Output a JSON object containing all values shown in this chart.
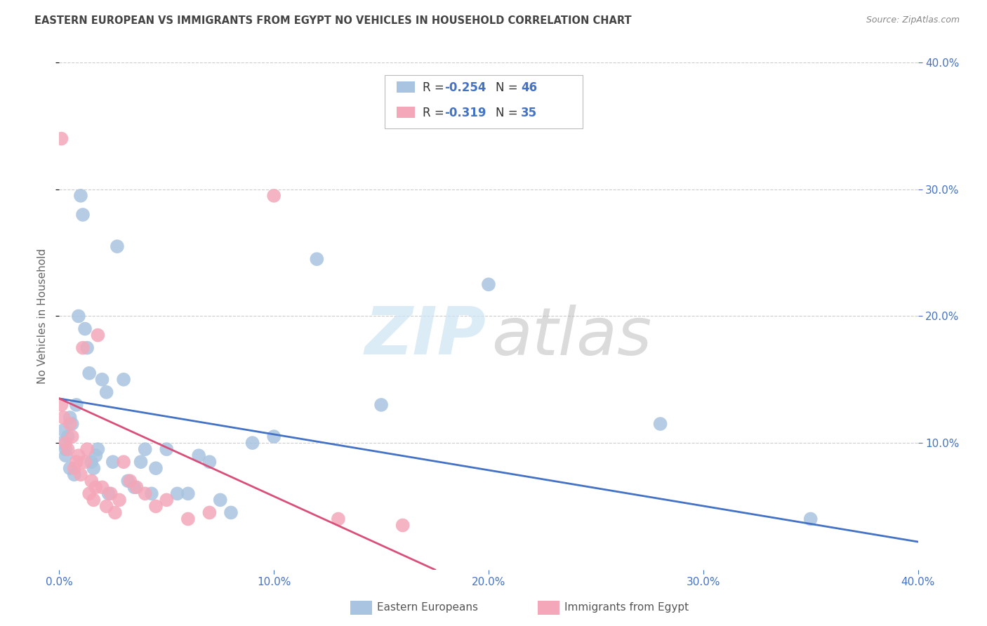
{
  "title": "EASTERN EUROPEAN VS IMMIGRANTS FROM EGYPT NO VEHICLES IN HOUSEHOLD CORRELATION CHART",
  "source": "Source: ZipAtlas.com",
  "ylabel": "No Vehicles in Household",
  "xlim": [
    0,
    0.4
  ],
  "ylim": [
    0,
    0.4
  ],
  "xtick_vals": [
    0.0,
    0.1,
    0.2,
    0.3,
    0.4
  ],
  "xtick_labels": [
    "0.0%",
    "10.0%",
    "20.0%",
    "30.0%",
    "40.0%"
  ],
  "ytick_vals": [
    0.1,
    0.2,
    0.3,
    0.4
  ],
  "ytick_labels": [
    "10.0%",
    "20.0%",
    "30.0%",
    "40.0%"
  ],
  "legend_R1": "-0.254",
  "legend_N1": "46",
  "legend_R2": "-0.319",
  "legend_N2": "35",
  "color_blue": "#a8c4e0",
  "color_pink": "#f4a7b9",
  "line_color_blue": "#4472c4",
  "line_color_pink": "#d94f7a",
  "tick_color": "#4472c4",
  "title_color": "#444444",
  "source_color": "#888888",
  "grid_color": "#cccccc",
  "background_color": "#ffffff",
  "watermark_zip_color": "#cde5f5",
  "watermark_atlas_color": "#b8b8b8",
  "blue_trend": [
    0.0,
    0.135,
    0.4,
    0.022
  ],
  "pink_trend": [
    0.0,
    0.135,
    0.175,
    0.0
  ],
  "blue_x": [
    0.001,
    0.002,
    0.003,
    0.004,
    0.005,
    0.005,
    0.006,
    0.007,
    0.008,
    0.009,
    0.01,
    0.011,
    0.012,
    0.013,
    0.014,
    0.015,
    0.016,
    0.017,
    0.018,
    0.02,
    0.022,
    0.025,
    0.027,
    0.03,
    0.032,
    0.035,
    0.038,
    0.04,
    0.043,
    0.05,
    0.055,
    0.06,
    0.065,
    0.07,
    0.075,
    0.08,
    0.09,
    0.1,
    0.12,
    0.15,
    0.2,
    0.28,
    0.35,
    0.023,
    0.045,
    0.003
  ],
  "blue_y": [
    0.1,
    0.11,
    0.09,
    0.105,
    0.12,
    0.08,
    0.115,
    0.075,
    0.13,
    0.2,
    0.295,
    0.28,
    0.19,
    0.175,
    0.155,
    0.085,
    0.08,
    0.09,
    0.095,
    0.15,
    0.14,
    0.085,
    0.255,
    0.15,
    0.07,
    0.065,
    0.085,
    0.095,
    0.06,
    0.095,
    0.06,
    0.06,
    0.09,
    0.085,
    0.055,
    0.045,
    0.1,
    0.105,
    0.245,
    0.13,
    0.225,
    0.115,
    0.04,
    0.06,
    0.08,
    0.095
  ],
  "pink_x": [
    0.001,
    0.001,
    0.002,
    0.003,
    0.004,
    0.005,
    0.006,
    0.007,
    0.008,
    0.009,
    0.01,
    0.011,
    0.012,
    0.013,
    0.014,
    0.015,
    0.016,
    0.017,
    0.018,
    0.02,
    0.022,
    0.024,
    0.026,
    0.028,
    0.03,
    0.033,
    0.036,
    0.04,
    0.045,
    0.05,
    0.06,
    0.07,
    0.1,
    0.13,
    0.16
  ],
  "pink_y": [
    0.34,
    0.13,
    0.12,
    0.1,
    0.095,
    0.115,
    0.105,
    0.08,
    0.085,
    0.09,
    0.075,
    0.175,
    0.085,
    0.095,
    0.06,
    0.07,
    0.055,
    0.065,
    0.185,
    0.065,
    0.05,
    0.06,
    0.045,
    0.055,
    0.085,
    0.07,
    0.065,
    0.06,
    0.05,
    0.055,
    0.04,
    0.045,
    0.295,
    0.04,
    0.035
  ]
}
